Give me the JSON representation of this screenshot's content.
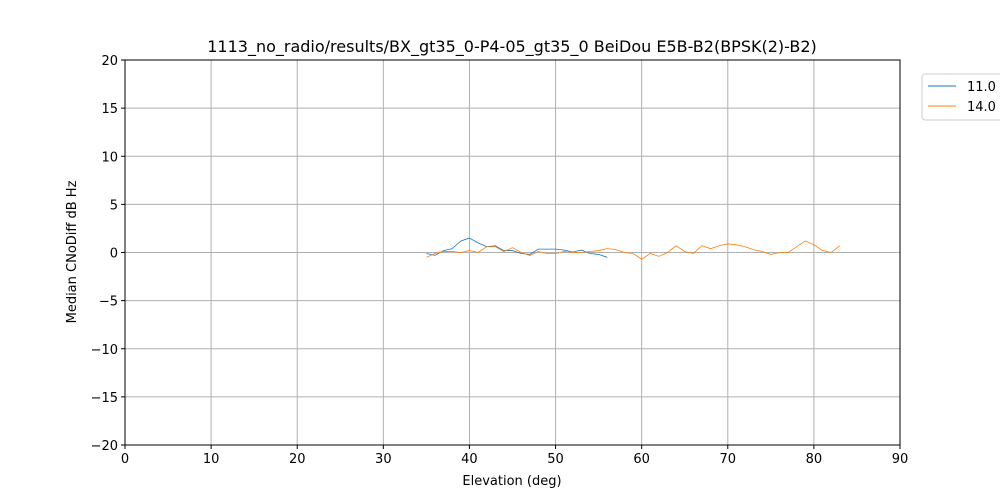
{
  "chart_data": {
    "type": "line",
    "title": "1113_no_radio/results/BX_gt35_0-P4-05_gt35_0 BeiDou E5B-B2(BPSK(2)-B2)",
    "xlabel": "Elevation (deg)",
    "ylabel": "Median CNoDiff dB Hz",
    "xlim": [
      0,
      90
    ],
    "ylim": [
      -20,
      20
    ],
    "xticks": [
      0,
      10,
      20,
      30,
      40,
      50,
      60,
      70,
      80,
      90
    ],
    "yticks": [
      -20,
      -15,
      -10,
      -5,
      0,
      5,
      10,
      15,
      20
    ],
    "grid": true,
    "legend_position": "outside top-right",
    "series": [
      {
        "name": "11.0",
        "color": "#1f77b4",
        "x": [
          35,
          36,
          37,
          38,
          39,
          40,
          41,
          42,
          43,
          44,
          45,
          46,
          47,
          48,
          49,
          50,
          51,
          52,
          53,
          54,
          55,
          56
        ],
        "y": [
          -0.1,
          -0.3,
          0.2,
          0.4,
          1.2,
          1.5,
          1.0,
          0.6,
          0.7,
          0.2,
          0.2,
          -0.1,
          -0.2,
          0.35,
          0.35,
          0.35,
          0.25,
          0.05,
          0.25,
          -0.1,
          -0.2,
          -0.5
        ]
      },
      {
        "name": "14.0",
        "color": "#ff7f0e",
        "x": [
          35,
          36,
          37,
          38,
          39,
          40,
          41,
          42,
          43,
          44,
          45,
          46,
          47,
          48,
          49,
          50,
          51,
          52,
          53,
          54,
          55,
          56,
          57,
          58,
          59,
          60,
          61,
          62,
          63,
          64,
          65,
          66,
          67,
          68,
          69,
          70,
          71,
          72,
          73,
          74,
          75,
          76,
          77,
          78,
          79,
          80,
          81,
          82,
          83
        ],
        "y": [
          -0.5,
          -0.1,
          0.1,
          0.1,
          0,
          0.2,
          0,
          0.6,
          0.6,
          0.1,
          0.5,
          0,
          -0.3,
          0.1,
          -0.1,
          -0.1,
          0.1,
          0,
          0,
          0.1,
          0.2,
          0.4,
          0.3,
          0,
          -0.1,
          -0.7,
          -0.1,
          -0.4,
          0,
          0.7,
          0.1,
          -0.1,
          0.7,
          0.4,
          0.7,
          0.9,
          0.8,
          0.6,
          0.3,
          0.1,
          -0.2,
          0,
          0,
          0.6,
          1.2,
          0.8,
          0.2,
          0,
          0.7
        ]
      }
    ]
  }
}
